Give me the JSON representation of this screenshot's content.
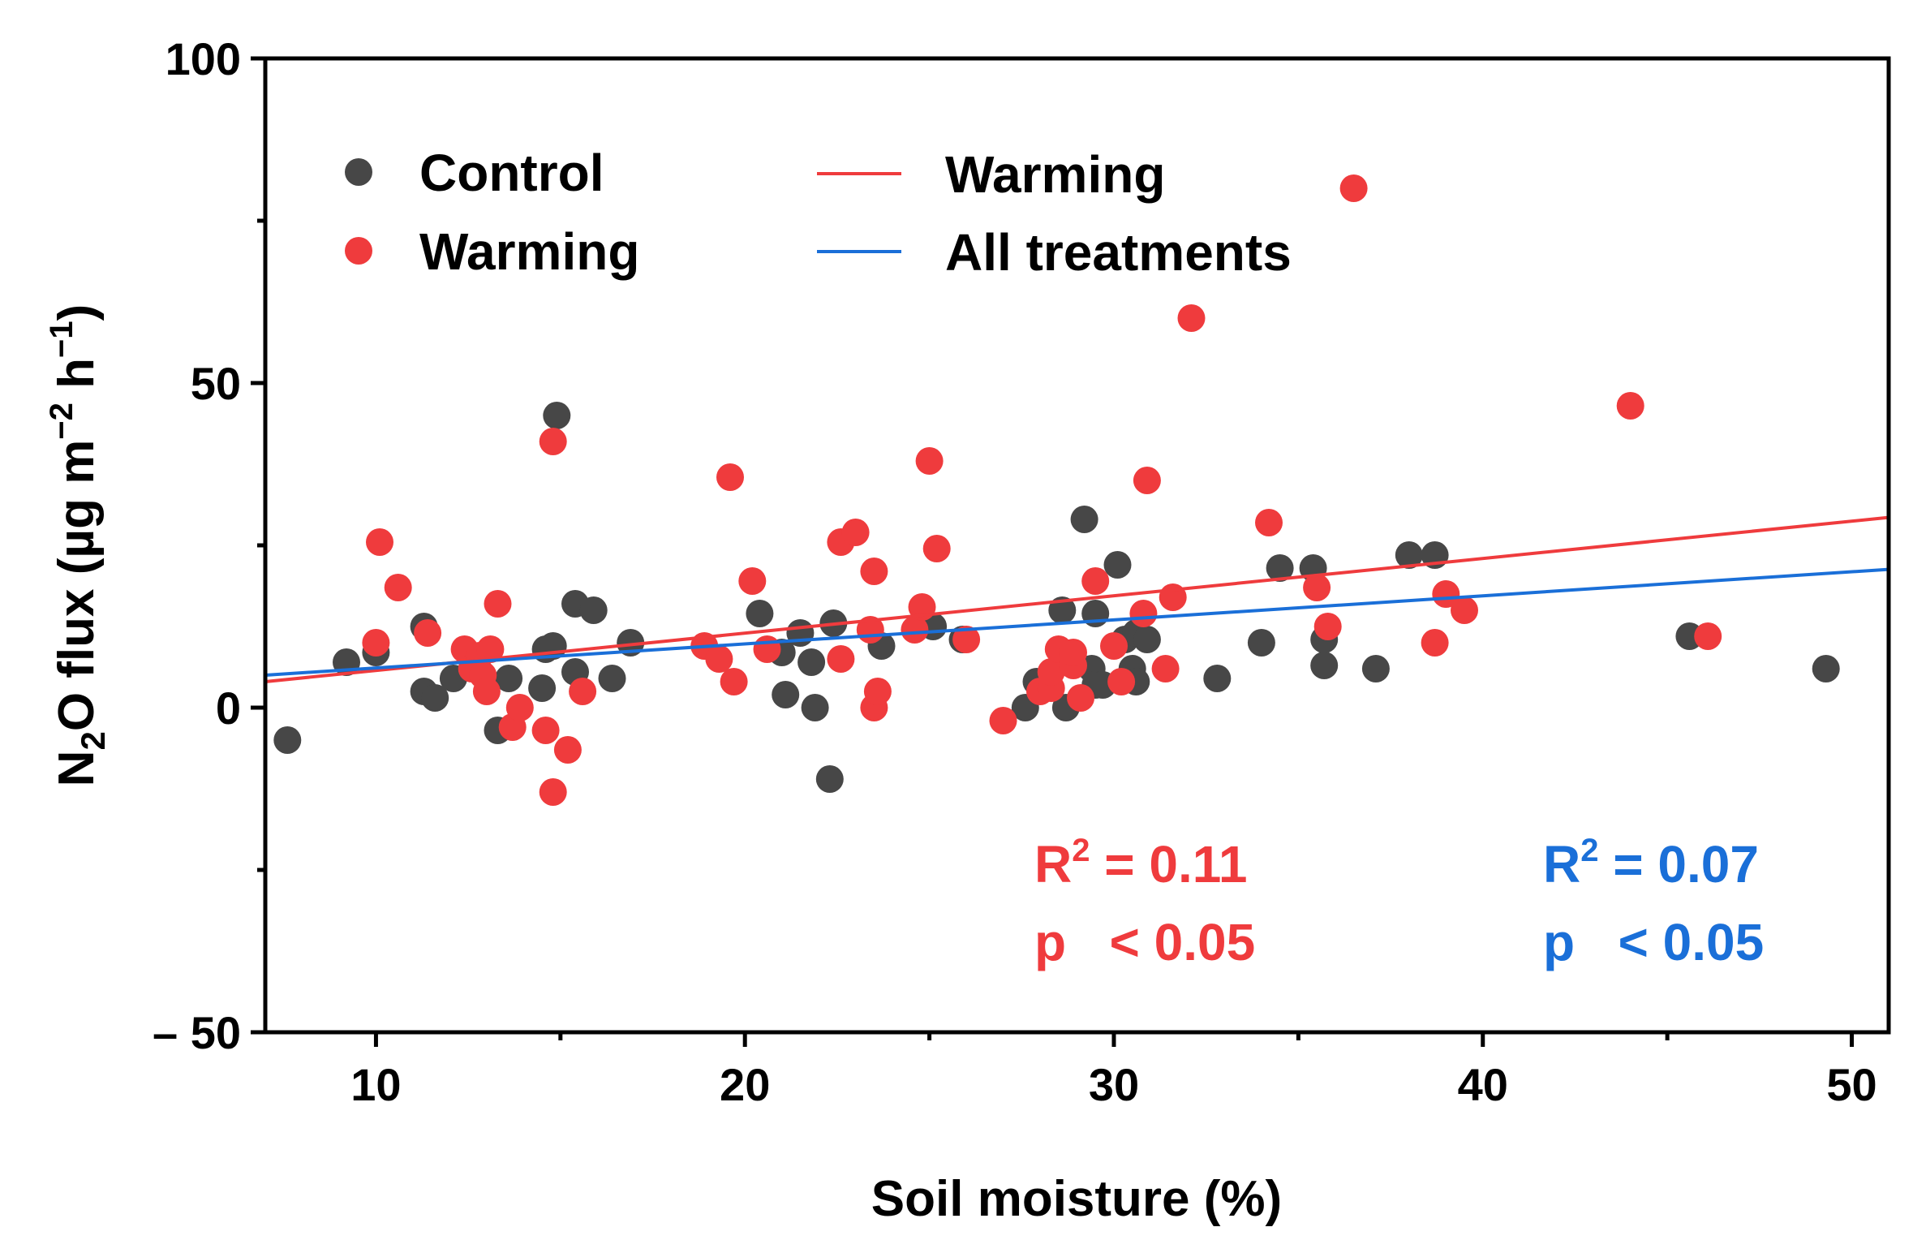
{
  "chart_data": {
    "type": "scatter",
    "xlabel": "Soil moisture (%)",
    "ylabel": {
      "prefix": "N",
      "sub": "2",
      "mid": "O flux (µg m",
      "sup1": "−2",
      "mid2": " h",
      "sup2": "−1",
      "suffix": ")"
    },
    "xlim": [
      7,
      51
    ],
    "ylim": [
      -50,
      100
    ],
    "x_ticks": [
      10,
      20,
      30,
      40,
      50
    ],
    "y_ticks": [
      {
        "value": -50,
        "label": "– 50"
      },
      {
        "value": 0,
        "label": "0"
      },
      {
        "value": 50,
        "label": "50"
      },
      {
        "value": 100,
        "label": "100"
      }
    ],
    "legend": [
      {
        "label": "Control",
        "kind": "marker",
        "color": "#474747"
      },
      {
        "label": "Warming",
        "kind": "marker",
        "color": "#ef3b3d"
      },
      {
        "label": "Warming",
        "kind": "line",
        "color": "#ef3b3d"
      },
      {
        "label": "All treatments",
        "kind": "line",
        "color": "#1a6fd8"
      }
    ],
    "series": [
      {
        "name": "Control",
        "color": "#474747",
        "points": [
          [
            7.6,
            -5
          ],
          [
            9.2,
            7
          ],
          [
            10.0,
            8.5
          ],
          [
            11.3,
            12.5
          ],
          [
            11.3,
            2.5
          ],
          [
            11.6,
            1.5
          ],
          [
            12.1,
            4.5
          ],
          [
            13.3,
            -3.5
          ],
          [
            13.6,
            4.5
          ],
          [
            14.5,
            3
          ],
          [
            14.6,
            9
          ],
          [
            14.8,
            9.5
          ],
          [
            14.9,
            45
          ],
          [
            15.4,
            16
          ],
          [
            15.4,
            5.5
          ],
          [
            15.9,
            15
          ],
          [
            16.4,
            4.5
          ],
          [
            16.9,
            10
          ],
          [
            20.4,
            14.5
          ],
          [
            21.0,
            8.5
          ],
          [
            21.1,
            2
          ],
          [
            21.5,
            11.5
          ],
          [
            21.8,
            7
          ],
          [
            21.9,
            0
          ],
          [
            22.3,
            -11
          ],
          [
            22.4,
            13
          ],
          [
            23.7,
            9.5
          ],
          [
            25.1,
            12.5
          ],
          [
            25.9,
            10.5
          ],
          [
            27.6,
            0
          ],
          [
            27.9,
            4
          ],
          [
            28.6,
            15
          ],
          [
            28.7,
            0
          ],
          [
            29.2,
            29
          ],
          [
            29.4,
            6
          ],
          [
            29.5,
            3.5
          ],
          [
            29.5,
            14.5
          ],
          [
            29.7,
            3.5
          ],
          [
            30.1,
            22
          ],
          [
            30.3,
            10.5
          ],
          [
            30.5,
            6
          ],
          [
            30.6,
            11.5
          ],
          [
            30.6,
            4
          ],
          [
            30.9,
            10.5
          ],
          [
            32.8,
            4.5
          ],
          [
            34.0,
            10
          ],
          [
            34.5,
            21.5
          ],
          [
            35.4,
            21.5
          ],
          [
            35.7,
            10.5
          ],
          [
            35.7,
            6.5
          ],
          [
            37.1,
            6
          ],
          [
            38.0,
            23.5
          ],
          [
            38.7,
            23.5
          ],
          [
            45.6,
            11
          ],
          [
            49.3,
            6
          ]
        ]
      },
      {
        "name": "Warming",
        "color": "#ef3b3d",
        "points": [
          [
            10.0,
            10
          ],
          [
            10.1,
            25.5
          ],
          [
            10.6,
            18.5
          ],
          [
            11.4,
            11.5
          ],
          [
            12.4,
            9
          ],
          [
            12.6,
            6
          ],
          [
            12.8,
            8
          ],
          [
            12.9,
            5
          ],
          [
            13.0,
            2.5
          ],
          [
            13.1,
            9
          ],
          [
            13.3,
            16
          ],
          [
            13.7,
            -3
          ],
          [
            13.9,
            0
          ],
          [
            14.6,
            -3.5
          ],
          [
            14.8,
            -13
          ],
          [
            14.8,
            41
          ],
          [
            15.2,
            -6.5
          ],
          [
            15.6,
            2.5
          ],
          [
            18.9,
            9.5
          ],
          [
            19.3,
            7.5
          ],
          [
            19.6,
            35.5
          ],
          [
            19.7,
            4
          ],
          [
            20.2,
            19.5
          ],
          [
            20.6,
            9
          ],
          [
            22.6,
            25.5
          ],
          [
            22.6,
            7.5
          ],
          [
            23.0,
            27
          ],
          [
            23.4,
            12
          ],
          [
            23.5,
            21
          ],
          [
            23.5,
            0
          ],
          [
            23.6,
            2.5
          ],
          [
            24.6,
            12
          ],
          [
            24.8,
            15.5
          ],
          [
            25.0,
            38
          ],
          [
            25.2,
            24.5
          ],
          [
            26.0,
            10.5
          ],
          [
            27.0,
            -2
          ],
          [
            28.0,
            2.5
          ],
          [
            28.3,
            3
          ],
          [
            28.3,
            5.5
          ],
          [
            28.5,
            9
          ],
          [
            28.9,
            6.5
          ],
          [
            28.9,
            8.5
          ],
          [
            29.1,
            1.5
          ],
          [
            29.5,
            19.5
          ],
          [
            30.0,
            9.5
          ],
          [
            30.2,
            4
          ],
          [
            30.8,
            14.5
          ],
          [
            30.9,
            35
          ],
          [
            31.4,
            6
          ],
          [
            31.6,
            17
          ],
          [
            32.1,
            60
          ],
          [
            34.2,
            28.5
          ],
          [
            35.5,
            18.5
          ],
          [
            35.8,
            12.5
          ],
          [
            36.5,
            80
          ],
          [
            38.7,
            10
          ],
          [
            39.0,
            17.5
          ],
          [
            39.5,
            15
          ],
          [
            44.0,
            46.5
          ],
          [
            46.1,
            11
          ]
        ]
      }
    ],
    "fits": [
      {
        "name": "Warming",
        "color": "#ef3b3d",
        "x": [
          7,
          51
        ],
        "y": [
          4.0,
          29.3
        ]
      },
      {
        "name": "All treatments",
        "color": "#1a6fd8",
        "x": [
          7,
          51
        ],
        "y": [
          5.0,
          21.3
        ]
      }
    ],
    "annotations": {
      "warming": {
        "color": "#ef3b3d",
        "r2_label": "R",
        "r2_sup": "2",
        "r2_value": " = 0.11",
        "p_text": "p   < 0.05"
      },
      "all": {
        "color": "#1a6fd8",
        "r2_label": "R",
        "r2_sup": "2",
        "r2_value": " = 0.07",
        "p_text": "p   < 0.05"
      }
    }
  }
}
